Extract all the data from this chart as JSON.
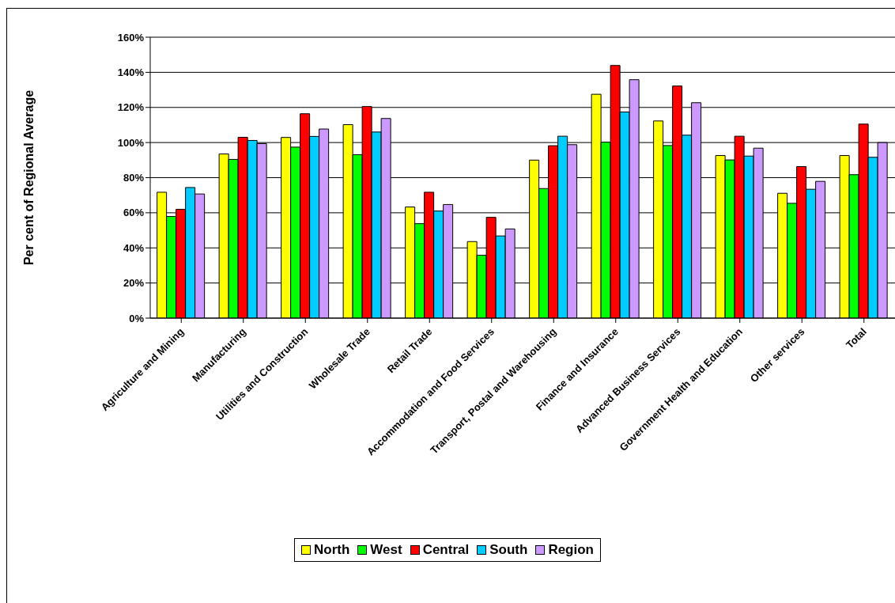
{
  "chart_data": {
    "type": "bar",
    "ylabel": "Per cent of Regional Average",
    "categories": [
      "Agriculture and Mining",
      "Manufacturing",
      "Utilities and Construction",
      "Wholesale Trade",
      "Retail Trade",
      "Accommodation and Food Services",
      "Transport, Postal and Warehousing",
      "Finance and Insurance",
      "Advanced Business Services",
      "Government Health and Education",
      "Other services",
      "Total"
    ],
    "series": [
      {
        "name": "North",
        "color": "#ffff00",
        "values": [
          71.7,
          93.5,
          102.9,
          110.2,
          63.3,
          43.6,
          90,
          127.5,
          112.3,
          92.6,
          71.1,
          92.6
        ]
      },
      {
        "name": "West",
        "color": "#00ff00",
        "values": [
          57.9,
          90.4,
          97.4,
          93.1,
          53.8,
          35.8,
          73.8,
          100.2,
          98.3,
          90.1,
          65.4,
          81.7
        ]
      },
      {
        "name": "Central",
        "color": "#ff0000",
        "values": [
          62,
          103,
          116.4,
          120.5,
          71.7,
          57.4,
          98.2,
          143.9,
          132.2,
          103.6,
          86.3,
          110.5
        ]
      },
      {
        "name": "South",
        "color": "#00ccff",
        "values": [
          74.4,
          101.2,
          103.5,
          106,
          61,
          46.8,
          103.6,
          117.4,
          104.2,
          92.3,
          73.4,
          91.6
        ]
      },
      {
        "name": "Region",
        "color": "#cc99ff",
        "values": [
          70.7,
          99.4,
          107.7,
          113.7,
          64.7,
          50.8,
          98.8,
          135.8,
          122.7,
          96.8,
          77.9,
          100
        ]
      }
    ],
    "ylim": [
      0,
      160
    ],
    "yticks": [
      {
        "value": 0,
        "label": "0%"
      },
      {
        "value": 20,
        "label": "20%"
      },
      {
        "value": 40,
        "label": "40%"
      },
      {
        "value": 60,
        "label": "60%"
      },
      {
        "value": 80,
        "label": "80%"
      },
      {
        "value": 100,
        "label": "100%"
      },
      {
        "value": 120,
        "label": "120%"
      },
      {
        "value": 140,
        "label": "140%"
      },
      {
        "value": 160,
        "label": "160%"
      }
    ],
    "grid": "y",
    "legend": "bottom"
  }
}
